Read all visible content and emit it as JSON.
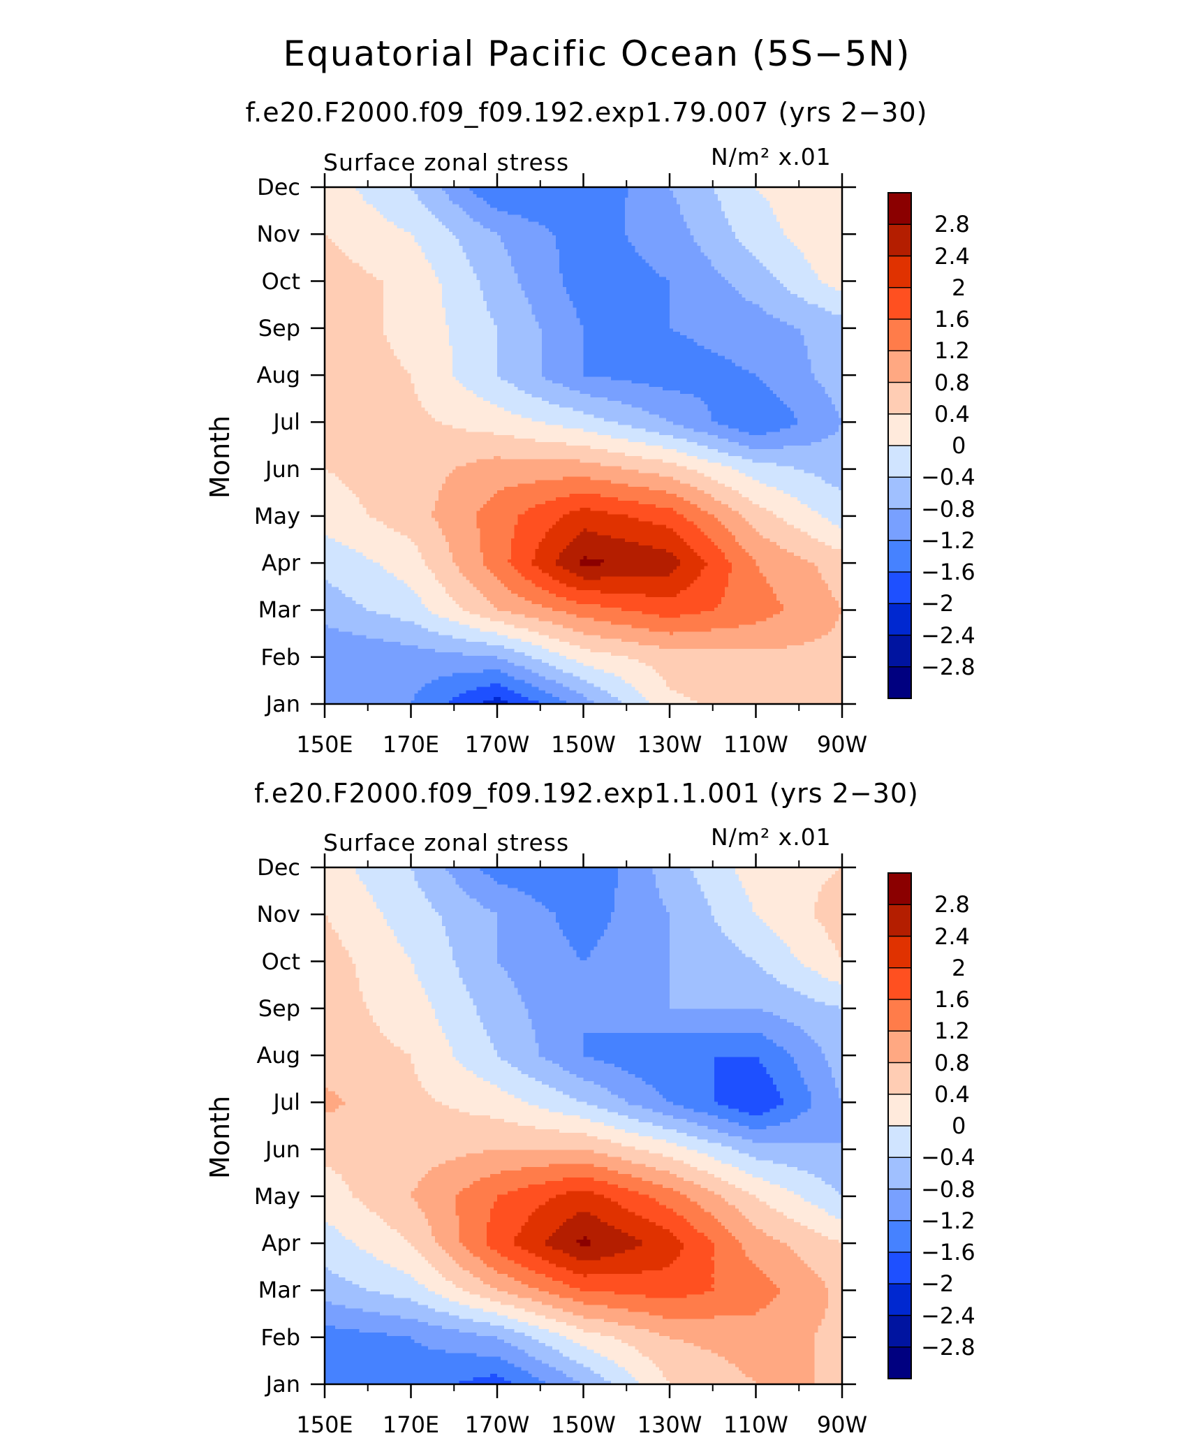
{
  "figure": {
    "title": "Equatorial Pacific Ocean (5S−5N)"
  },
  "colorbar": {
    "colors": [
      "#000080",
      "#0014A0",
      "#0028D0",
      "#1E50FF",
      "#4682FF",
      "#78A0FF",
      "#A0C0FF",
      "#D0E4FF",
      "#FFEADC",
      "#FFCDB4",
      "#FFA882",
      "#FF7C4A",
      "#FF5020",
      "#E03200",
      "#B41E00",
      "#8B0000"
    ],
    "labels": [
      "2.8",
      "2.4",
      "2",
      "1.6",
      "1.2",
      "0.8",
      "0.4",
      "0",
      "−0.4",
      "−0.8",
      "−1.2",
      "−1.6",
      "−2",
      "−2.4",
      "−2.8"
    ]
  },
  "chart_data": [
    {
      "type": "heatmap",
      "subtitle": "f.e20.F2000.f09_f09.192.exp1.79.007 (yrs 2−30)",
      "variable": "Surface zonal stress",
      "units": "N/m² x.01",
      "ylabel": "Month",
      "x_ticks": [
        "150E",
        "170E",
        "170W",
        "150W",
        "130W",
        "110W",
        "90W"
      ],
      "y_ticks": [
        "Jan",
        "Feb",
        "Mar",
        "Apr",
        "May",
        "Jun",
        "Jul",
        "Aug",
        "Sep",
        "Oct",
        "Nov",
        "Dec"
      ],
      "x": [
        150,
        170,
        190,
        210,
        230,
        250,
        270
      ],
      "y": [
        "Jan",
        "Feb",
        "Mar",
        "Apr",
        "May",
        "Jun",
        "Jul",
        "Aug",
        "Sep",
        "Oct",
        "Nov",
        "Dec"
      ],
      "values": [
        [
          -0.8,
          -1.2,
          -2.2,
          -1.0,
          0.3,
          0.6,
          0.7
        ],
        [
          -1.2,
          -1.0,
          -0.8,
          0.2,
          0.6,
          0.7,
          0.7
        ],
        [
          -0.6,
          -0.2,
          0.8,
          1.4,
          1.8,
          1.4,
          0.8
        ],
        [
          -0.3,
          0.2,
          1.4,
          2.9,
          2.6,
          1.2,
          0.6
        ],
        [
          0.2,
          0.6,
          1.4,
          2.2,
          1.8,
          0.6,
          -0.2
        ],
        [
          0.4,
          0.6,
          1.0,
          1.0,
          0.6,
          -0.2,
          -0.6
        ],
        [
          0.6,
          0.5,
          0.2,
          -0.2,
          -0.8,
          -1.6,
          -0.8
        ],
        [
          0.6,
          0.4,
          -0.4,
          -1.2,
          -1.4,
          -1.2,
          -0.6
        ],
        [
          0.6,
          0.3,
          -0.4,
          -1.2,
          -1.2,
          -1.0,
          -0.6
        ],
        [
          0.6,
          0.3,
          -0.6,
          -1.4,
          -1.2,
          -0.6,
          0.2
        ],
        [
          0.4,
          0.0,
          -0.8,
          -1.4,
          -1.0,
          -0.2,
          0.4
        ],
        [
          0.2,
          -0.4,
          -1.6,
          -1.6,
          -0.8,
          0.0,
          0.4
        ]
      ],
      "levels": [
        -2.8,
        -2.4,
        -2.0,
        -1.6,
        -1.2,
        -0.8,
        -0.4,
        0,
        0.4,
        0.8,
        1.2,
        1.6,
        2.0,
        2.4,
        2.8
      ]
    },
    {
      "type": "heatmap",
      "subtitle": "f.e20.F2000.f09_f09.192.exp1.1.001 (yrs 2−30)",
      "variable": "Surface zonal stress",
      "units": "N/m² x.01",
      "ylabel": "Month",
      "x_ticks": [
        "150E",
        "170E",
        "170W",
        "150W",
        "130W",
        "110W",
        "90W"
      ],
      "y_ticks": [
        "Jan",
        "Feb",
        "Mar",
        "Apr",
        "May",
        "Jun",
        "Jul",
        "Aug",
        "Sep",
        "Oct",
        "Nov",
        "Dec"
      ],
      "x": [
        150,
        170,
        190,
        210,
        230,
        250,
        270
      ],
      "y": [
        "Jan",
        "Feb",
        "Mar",
        "Apr",
        "May",
        "Jun",
        "Jul",
        "Aug",
        "Sep",
        "Oct",
        "Nov",
        "Dec"
      ],
      "values": [
        [
          -1.4,
          -1.4,
          -1.8,
          -0.8,
          0.4,
          0.8,
          0.8
        ],
        [
          -1.4,
          -1.2,
          -0.8,
          0.2,
          0.8,
          1.0,
          0.7
        ],
        [
          -0.6,
          -0.2,
          0.8,
          1.6,
          1.8,
          1.4,
          0.7
        ],
        [
          -0.2,
          0.4,
          1.8,
          2.9,
          2.2,
          1.0,
          0.4
        ],
        [
          0.2,
          0.8,
          1.6,
          2.2,
          1.4,
          0.4,
          -0.4
        ],
        [
          0.5,
          0.6,
          0.8,
          0.8,
          0.2,
          -0.6,
          -0.8
        ],
        [
          0.9,
          0.5,
          0.2,
          -0.4,
          -1.2,
          -2.0,
          -0.8
        ],
        [
          0.6,
          0.4,
          -0.4,
          -1.2,
          -1.6,
          -1.6,
          -0.6
        ],
        [
          0.6,
          0.2,
          -0.6,
          -1.2,
          -0.8,
          -0.8,
          -0.4
        ],
        [
          0.6,
          0.0,
          -0.8,
          -1.2,
          -0.8,
          -0.4,
          0.4
        ],
        [
          0.4,
          -0.2,
          -0.8,
          -1.4,
          -0.8,
          0.0,
          0.6
        ],
        [
          0.2,
          -0.4,
          -1.4,
          -1.6,
          -0.6,
          0.2,
          0.4
        ]
      ],
      "levels": [
        -2.8,
        -2.4,
        -2.0,
        -1.6,
        -1.2,
        -0.8,
        -0.4,
        0,
        0.4,
        0.8,
        1.2,
        1.6,
        2.0,
        2.4,
        2.8
      ]
    }
  ]
}
